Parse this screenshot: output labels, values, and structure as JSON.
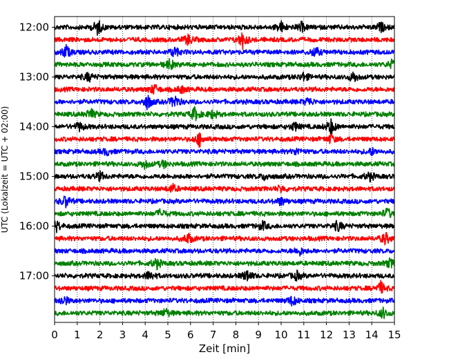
{
  "chart_data": {
    "type": "line",
    "xlabel": "Zeit  [min]",
    "ylabel": "UTC (Lokalzeit = UTC + 02:00)",
    "xlim": [
      0,
      15
    ],
    "x_ticks": [
      0,
      1,
      2,
      3,
      4,
      5,
      6,
      7,
      8,
      9,
      10,
      11,
      12,
      13,
      14,
      15
    ],
    "y_ticks": [
      "12:00",
      "13:00",
      "14:00",
      "15:00",
      "16:00",
      "17:00"
    ],
    "grid": "x-dotted",
    "legend": "none",
    "trace_colors": [
      "#000000",
      "#ff0000",
      "#0000ff",
      "#008000"
    ],
    "traces": [
      {
        "start": "12:00",
        "events": [
          [
            1.9,
            0.9
          ],
          [
            10.0,
            0.6
          ],
          [
            10.9,
            0.5
          ],
          [
            14.4,
            0.5
          ]
        ]
      },
      {
        "start": "12:15",
        "events": [
          [
            5.9,
            0.6
          ],
          [
            8.3,
            1.0
          ]
        ]
      },
      {
        "start": "12:30",
        "events": [
          [
            0.5,
            0.8
          ],
          [
            5.3,
            0.6
          ],
          [
            11.5,
            0.6
          ]
        ]
      },
      {
        "start": "12:45",
        "events": [
          [
            5.1,
            0.6
          ],
          [
            14.9,
            0.5
          ]
        ]
      },
      {
        "start": "13:00",
        "events": [
          [
            1.5,
            0.5
          ],
          [
            11.0,
            0.5
          ],
          [
            13.2,
            0.6
          ]
        ]
      },
      {
        "start": "13:15",
        "events": [
          [
            4.4,
            0.6
          ],
          [
            5.6,
            0.4
          ]
        ]
      },
      {
        "start": "13:30",
        "events": [
          [
            4.1,
            0.9
          ],
          [
            5.3,
            0.8
          ],
          [
            11.2,
            0.5
          ]
        ]
      },
      {
        "start": "13:45",
        "events": [
          [
            1.6,
            0.6
          ],
          [
            6.2,
            0.8
          ],
          [
            7.0,
            0.5
          ]
        ]
      },
      {
        "start": "14:00",
        "events": [
          [
            1.1,
            0.5
          ],
          [
            10.6,
            0.5
          ],
          [
            12.2,
            0.9
          ]
        ]
      },
      {
        "start": "14:15",
        "events": [
          [
            6.4,
            0.8
          ],
          [
            12.2,
            0.5
          ]
        ]
      },
      {
        "start": "14:30",
        "events": [
          [
            2.3,
            0.4
          ],
          [
            10.7,
            0.4
          ],
          [
            14.0,
            0.4
          ]
        ]
      },
      {
        "start": "14:45",
        "events": [
          [
            4.0,
            0.5
          ],
          [
            4.8,
            0.4
          ]
        ]
      },
      {
        "start": "15:00",
        "events": [
          [
            2.0,
            0.5
          ],
          [
            9.3,
            0.4
          ],
          [
            13.9,
            0.5
          ]
        ]
      },
      {
        "start": "15:15",
        "events": [
          [
            5.2,
            0.5
          ],
          [
            10.0,
            0.4
          ]
        ]
      },
      {
        "start": "15:30",
        "events": [
          [
            0.5,
            0.7
          ],
          [
            10.0,
            0.5
          ]
        ]
      },
      {
        "start": "15:45",
        "events": [
          [
            4.7,
            0.5
          ],
          [
            14.7,
            0.6
          ]
        ]
      },
      {
        "start": "16:00",
        "events": [
          [
            0.1,
            0.6
          ],
          [
            9.2,
            0.5
          ],
          [
            12.5,
            0.6
          ]
        ]
      },
      {
        "start": "16:15",
        "events": [
          [
            5.9,
            0.6
          ],
          [
            14.6,
            0.7
          ]
        ]
      },
      {
        "start": "16:30",
        "events": [
          [
            10.8,
            0.5
          ]
        ]
      },
      {
        "start": "16:45",
        "events": [
          [
            4.5,
            0.6
          ],
          [
            14.8,
            0.5
          ]
        ]
      },
      {
        "start": "17:00",
        "events": [
          [
            4.2,
            0.6
          ],
          [
            8.5,
            0.7
          ],
          [
            10.7,
            0.5
          ]
        ]
      },
      {
        "start": "17:15",
        "events": [
          [
            14.4,
            0.7
          ]
        ]
      },
      {
        "start": "17:30",
        "events": [
          [
            0.4,
            0.6
          ],
          [
            10.5,
            0.6
          ]
        ]
      },
      {
        "start": "17:45",
        "events": [
          [
            4.9,
            0.5
          ],
          [
            14.5,
            0.6
          ]
        ]
      }
    ]
  }
}
